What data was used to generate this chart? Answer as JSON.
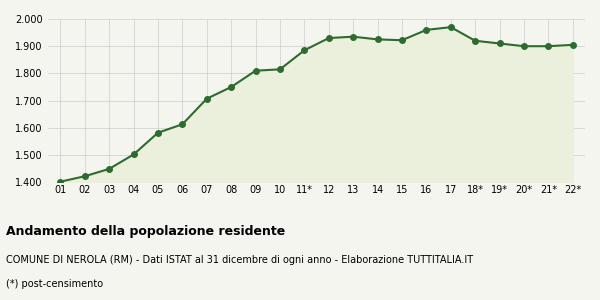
{
  "x_labels": [
    "01",
    "02",
    "03",
    "04",
    "05",
    "06",
    "07",
    "08",
    "09",
    "10",
    "11*",
    "12",
    "13",
    "14",
    "15",
    "16",
    "17",
    "18*",
    "19*",
    "20*",
    "21*",
    "22*"
  ],
  "values": [
    1402,
    1422,
    1449,
    1502,
    1582,
    1613,
    1707,
    1750,
    1810,
    1815,
    1885,
    1930,
    1935,
    1925,
    1922,
    1960,
    1970,
    1920,
    1910,
    1900,
    1900,
    1905
  ],
  "ylim": [
    1400,
    2000
  ],
  "yticks": [
    1400,
    1500,
    1600,
    1700,
    1800,
    1900,
    2000
  ],
  "line_color": "#2e6b2e",
  "fill_color": "#eaf0dc",
  "marker_color": "#2e6b2e",
  "bg_color": "#f5f5f0",
  "plot_bg_color": "#f5f5f0",
  "grid_color": "#cccccc",
  "title": "Andamento della popolazione residente",
  "subtitle": "COMUNE DI NEROLA (RM) - Dati ISTAT al 31 dicembre di ogni anno - Elaborazione TUTTITALIA.IT",
  "footnote": "(*) post-censimento",
  "title_fontsize": 9,
  "subtitle_fontsize": 7,
  "footnote_fontsize": 7
}
